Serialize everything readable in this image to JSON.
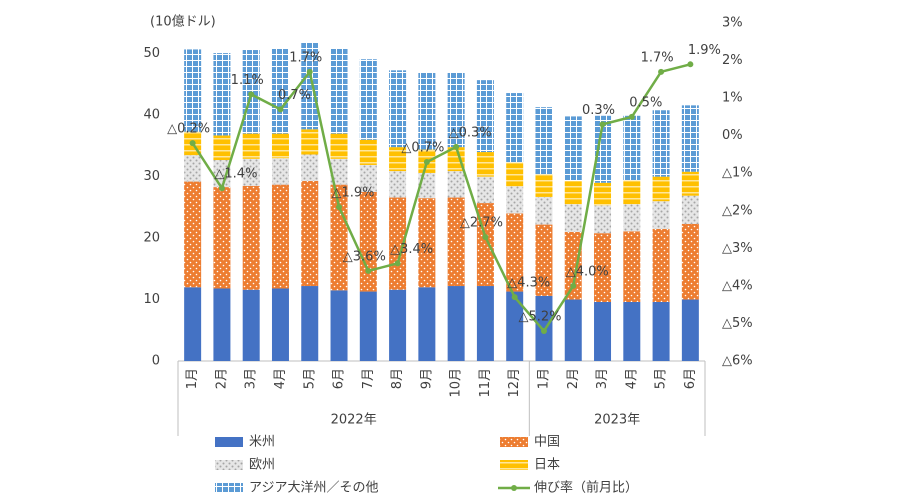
{
  "chart_data": {
    "type": "bar",
    "stacked": true,
    "y_axis_label": "(10億ドル)",
    "category_groups": [
      {
        "label": "2022年",
        "categories": [
          "1月",
          "2月",
          "3月",
          "4月",
          "5月",
          "6月",
          "7月",
          "8月",
          "9月",
          "10月",
          "11月",
          "12月"
        ]
      },
      {
        "label": "2023年",
        "categories": [
          "1月",
          "2月",
          "3月",
          "4月",
          "5月",
          "6月"
        ]
      }
    ],
    "ylim": [
      0,
      55
    ],
    "yticks": [
      0,
      10,
      20,
      30,
      40,
      50
    ],
    "y2lim": [
      -6,
      3
    ],
    "y2ticks": [
      {
        "value": 3,
        "label": "3%"
      },
      {
        "value": 2,
        "label": "2%"
      },
      {
        "value": 1,
        "label": "1%"
      },
      {
        "value": 0,
        "label": "0%"
      },
      {
        "value": -1,
        "label": "△1%"
      },
      {
        "value": -2,
        "label": "△2%"
      },
      {
        "value": -3,
        "label": "△3%"
      },
      {
        "value": -4,
        "label": "△4%"
      },
      {
        "value": -5,
        "label": "△5%"
      },
      {
        "value": -6,
        "label": "△6%"
      }
    ],
    "grid": false,
    "series": [
      {
        "name": "米州",
        "color": "#4472c4",
        "values": [
          12.0,
          11.8,
          11.6,
          11.8,
          12.2,
          11.5,
          11.3,
          11.6,
          12.0,
          12.2,
          12.2,
          11.3,
          10.6,
          10.0,
          9.6,
          9.6,
          9.6,
          10.0
        ]
      },
      {
        "name": "中国",
        "color": "#ed7d31",
        "values": [
          17.2,
          16.5,
          16.9,
          16.9,
          17.1,
          17.2,
          16.2,
          15.0,
          14.5,
          14.4,
          13.5,
          12.7,
          11.6,
          11.0,
          11.2,
          11.5,
          11.9,
          12.3
        ]
      },
      {
        "name": "欧州",
        "color": "#a5a5a5",
        "values": [
          4.3,
          4.4,
          4.4,
          4.3,
          4.3,
          4.2,
          4.4,
          4.3,
          4.1,
          4.3,
          4.3,
          4.4,
          4.5,
          4.5,
          4.5,
          4.4,
          4.5,
          4.6
        ]
      },
      {
        "name": "日本",
        "color": "#ffc000",
        "values": [
          3.8,
          4.0,
          4.1,
          4.0,
          4.1,
          4.1,
          4.1,
          3.9,
          3.8,
          3.9,
          4.0,
          3.9,
          3.7,
          3.8,
          3.7,
          3.9,
          4.0,
          3.9
        ]
      },
      {
        "name": "アジア大洋州／その他",
        "color": "#5b9bd5",
        "values": [
          13.4,
          13.4,
          13.6,
          13.9,
          14.1,
          13.9,
          13.1,
          12.5,
          12.6,
          12.2,
          11.7,
          11.3,
          10.9,
          10.5,
          10.9,
          10.5,
          10.8,
          10.8
        ]
      },
      {
        "name": "伸び率（前月比）",
        "type": "line",
        "axis": "y2",
        "color": "#70ad47",
        "values": [
          -0.2,
          -1.4,
          1.1,
          0.7,
          1.7,
          -1.9,
          -3.6,
          -3.4,
          -0.7,
          -0.3,
          -2.7,
          -4.3,
          -5.2,
          -4.0,
          0.3,
          0.5,
          1.7,
          1.9
        ],
        "value_labels": [
          "△0.2%",
          "△1.4%",
          "1.1%",
          "0.7%",
          "1.7%",
          "△1.9%",
          "△3.6%",
          "△3.4%",
          "△0.7%",
          "△0.3%",
          "△2.7%",
          "△4.3%",
          "△5.2%",
          "△4.0%",
          "0.3%",
          "0.5%",
          "1.7%",
          "1.9%"
        ]
      }
    ]
  }
}
